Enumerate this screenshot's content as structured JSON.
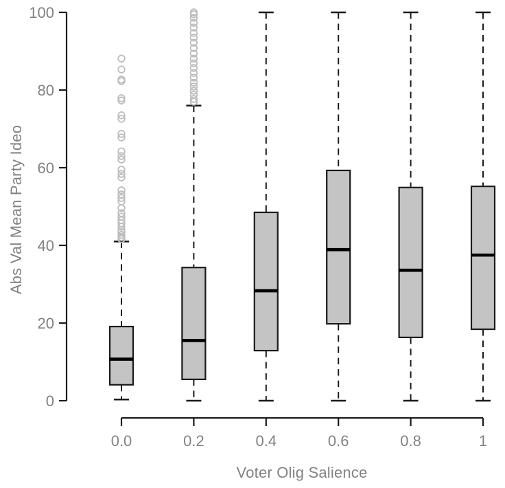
{
  "chart_data": {
    "type": "boxplot",
    "title": "",
    "xlabel": "Voter Olig Salience",
    "ylabel": "Abs Val Mean Party Ideo",
    "categories": [
      "0.0",
      "0.2",
      "0.4",
      "0.6",
      "0.8",
      "1"
    ],
    "y_ticks": [
      0,
      20,
      40,
      60,
      80,
      100
    ],
    "ylim": [
      0,
      100
    ],
    "grid": false,
    "legend": false,
    "boxes": [
      {
        "category": "0.0",
        "whisker_low": 0.3,
        "q1": 4.1,
        "median": 10.7,
        "q3": 19.1,
        "whisker_high": 41.0,
        "outliers": [
          88.1,
          85.3,
          82.7,
          82.3,
          77.9,
          77.3,
          73.5,
          72.6,
          68.7,
          67.8,
          64.2,
          63.0,
          62.1,
          59.5,
          58.4,
          57.5,
          54.2,
          53.1,
          52.2,
          51.3,
          49.6,
          48.3,
          47.4,
          46.5,
          45.7,
          44.8,
          43.9,
          43.4,
          42.7,
          42.1,
          41.6
        ]
      },
      {
        "category": "0.2",
        "whisker_low": 0.0,
        "q1": 5.5,
        "median": 15.5,
        "q3": 34.3,
        "whisker_high": 76.0,
        "outliers": [
          100,
          99.5,
          98.6,
          97.3,
          96.1,
          94.7,
          93.5,
          92.2,
          90.8,
          89.4,
          88.1,
          86.9,
          85.7,
          84.4,
          83.2,
          81.9,
          80.9,
          79.8,
          78.8,
          77.7,
          77.0
        ]
      },
      {
        "category": "0.4",
        "whisker_low": 0.0,
        "q1": 12.9,
        "median": 28.3,
        "q3": 48.5,
        "whisker_high": 100,
        "outliers": []
      },
      {
        "category": "0.6",
        "whisker_low": 0.0,
        "q1": 19.8,
        "median": 38.9,
        "q3": 59.3,
        "whisker_high": 100,
        "outliers": []
      },
      {
        "category": "0.8",
        "whisker_low": 0.0,
        "q1": 16.3,
        "median": 33.6,
        "q3": 54.9,
        "whisker_high": 100,
        "outliers": []
      },
      {
        "category": "1",
        "whisker_low": 0.0,
        "q1": 18.4,
        "median": 37.5,
        "q3": 55.2,
        "whisker_high": 100,
        "outliers": []
      }
    ],
    "colors": {
      "box_fill": "#c4c4c4",
      "box_border": "#1a1a1a",
      "median": "#000000",
      "whisker": "#1a1a1a",
      "outlier": "#bdbdbd",
      "axis_line": "#1a1a1a",
      "tick_label": "#828282",
      "background": "#ffffff"
    }
  }
}
